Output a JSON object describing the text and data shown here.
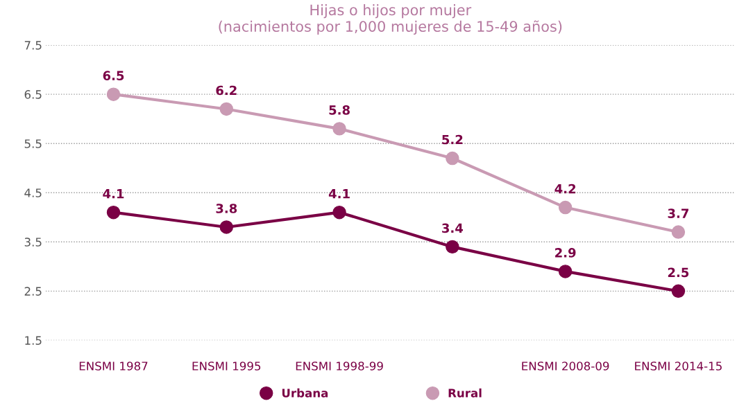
{
  "chart_data": {
    "type": "line",
    "title": "Hijas o hijos por mujer\n(nacimientos por 1,000 mujeres de 15-49 años)",
    "categories": [
      "ENSMI 1987",
      "ENSMI 1995",
      "ENSMI 1998-99",
      null,
      "ENSMI 2008-09",
      "ENSMI 2014-15"
    ],
    "series": [
      {
        "name": "Urbana",
        "color": "#7a0045",
        "values": [
          4.1,
          3.8,
          4.1,
          3.4,
          2.9,
          2.5
        ]
      },
      {
        "name": "Rural",
        "color": "#c99ab3",
        "values": [
          6.5,
          6.2,
          5.8,
          5.2,
          4.2,
          3.7
        ]
      }
    ],
    "ylim": [
      1.5,
      7.5
    ],
    "yticks": [
      1.5,
      2.5,
      3.5,
      4.5,
      5.5,
      6.5,
      7.5
    ],
    "grid": "y",
    "legend": "bottom",
    "marker": "circle",
    "line_style": "solid",
    "data_labels": true
  }
}
